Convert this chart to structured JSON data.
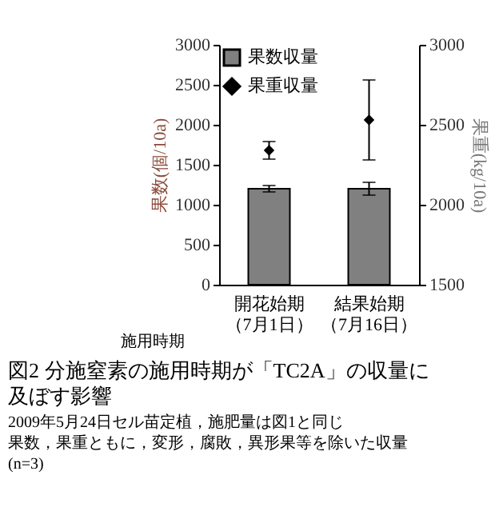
{
  "chart_data": {
    "type": "bar",
    "title": "図2 分施窒素の施用時期が「TC2A」の収量に及ぼす影響",
    "xlabel": "施用時期",
    "ylabel": "果数(個/10a)",
    "y2label": "果重(kg/10a)",
    "annotations": [
      "2009年5月24日セル苗定植，施肥量は図1と同じ",
      "果数，果重ともに，変形，腐敗，異形果等を除いた収量",
      "(n=3)"
    ],
    "categories": [
      "開花始期（7月1日）",
      "結果始期（7月16日）"
    ],
    "series": [
      {
        "name": "果数収量",
        "color": "#808080",
        "values": [
          1200,
          1200
        ],
        "errors": [
          40,
          80
        ]
      },
      {
        "name": "果重収量",
        "type": "scatter",
        "axis": "y2",
        "marker": "diamond",
        "color": "#000000",
        "values": [
          2340,
          2530
        ],
        "errors": [
          55,
          250
        ]
      }
    ],
    "ylim": [
      0,
      3000
    ],
    "yticks": [
      0,
      500,
      1000,
      1500,
      2000,
      2500,
      3000
    ],
    "y2lim": [
      1500,
      3000
    ],
    "y2ticks": [
      1500,
      2000,
      2500,
      3000
    ],
    "grid": false,
    "legend": "top left"
  }
}
